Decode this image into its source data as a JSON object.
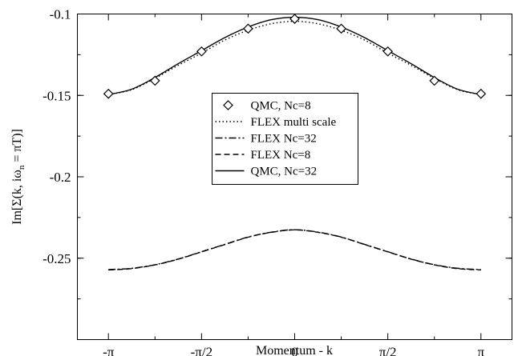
{
  "chart_data": {
    "type": "line",
    "xlabel": "Momentum - k",
    "ylabel_parts": {
      "main": "Im[Σ(k, iω",
      "sub": "n",
      "tail": " = πT)]"
    },
    "xlim": [
      -3.6652,
      3.6652
    ],
    "ylim": [
      -0.3,
      -0.1
    ],
    "x_ticks": [
      {
        "value": -3.14159,
        "label": "-π"
      },
      {
        "value": -1.5708,
        "label": "-π/2"
      },
      {
        "value": 0,
        "label": "0"
      },
      {
        "value": 1.5708,
        "label": "π/2"
      },
      {
        "value": 3.14159,
        "label": "π"
      }
    ],
    "y_ticks": [
      {
        "value": -0.1,
        "label": "-0.1"
      },
      {
        "value": -0.15,
        "label": "-0.15"
      },
      {
        "value": -0.2,
        "label": "-0.2"
      },
      {
        "value": -0.25,
        "label": "-0.25"
      }
    ],
    "series": [
      {
        "name": "QMC, Nc=8",
        "style": "markers",
        "marker": "diamond",
        "x": [
          -3.14159,
          -2.35619,
          -1.5708,
          -0.7854,
          0,
          0.7854,
          1.5708,
          2.35619,
          3.14159
        ],
        "y": [
          -0.149,
          -0.141,
          -0.123,
          -0.109,
          -0.103,
          -0.109,
          -0.123,
          -0.141,
          -0.149
        ]
      },
      {
        "name": "FLEX multi scale",
        "style": "dotted",
        "x": [
          -3.14159,
          -2.74889,
          -2.35619,
          -1.9635,
          -1.5708,
          -1.1781,
          -0.7854,
          -0.3927,
          0,
          0.3927,
          0.7854,
          1.1781,
          1.5708,
          1.9635,
          2.35619,
          2.74889,
          3.14159
        ],
        "y": [
          -0.1495,
          -0.1465,
          -0.1395,
          -0.1315,
          -0.124,
          -0.116,
          -0.11,
          -0.106,
          -0.1045,
          -0.106,
          -0.11,
          -0.116,
          -0.124,
          -0.1315,
          -0.1395,
          -0.1465,
          -0.1495
        ]
      },
      {
        "name": "FLEX Nc=32",
        "style": "dashdot",
        "x": [
          -3.14159,
          -2.74889,
          -2.35619,
          -1.9635,
          -1.5708,
          -1.1781,
          -0.7854,
          -0.3927,
          0,
          0.3927,
          0.7854,
          1.1781,
          1.5708,
          1.9635,
          2.35619,
          2.74889,
          3.14159
        ],
        "y": [
          -0.257,
          -0.2562,
          -0.254,
          -0.2505,
          -0.246,
          -0.2415,
          -0.237,
          -0.234,
          -0.2325,
          -0.234,
          -0.237,
          -0.2415,
          -0.246,
          -0.2505,
          -0.254,
          -0.2562,
          -0.257
        ]
      },
      {
        "name": "FLEX Nc=8",
        "style": "dashed",
        "x": [
          -3.14159,
          -2.74889,
          -2.35619,
          -1.9635,
          -1.5708,
          -1.1781,
          -0.7854,
          -0.3927,
          0,
          0.3927,
          0.7854,
          1.1781,
          1.5708,
          1.9635,
          2.35619,
          2.74889,
          3.14159
        ],
        "y": [
          -0.2572,
          -0.2564,
          -0.2541,
          -0.2506,
          -0.2461,
          -0.2416,
          -0.2371,
          -0.2341,
          -0.2326,
          -0.2341,
          -0.2371,
          -0.2416,
          -0.2461,
          -0.2506,
          -0.2541,
          -0.2564,
          -0.2572
        ]
      },
      {
        "name": "QMC, Nc=32",
        "style": "solid",
        "x": [
          -3.14159,
          -2.74889,
          -2.35619,
          -1.9635,
          -1.5708,
          -1.1781,
          -0.7854,
          -0.3927,
          0,
          0.3927,
          0.7854,
          1.1781,
          1.5708,
          1.9635,
          2.35619,
          2.74889,
          3.14159
        ],
        "y": [
          -0.1495,
          -0.1462,
          -0.139,
          -0.1305,
          -0.1225,
          -0.1145,
          -0.108,
          -0.1035,
          -0.102,
          -0.1035,
          -0.108,
          -0.1145,
          -0.1225,
          -0.1305,
          -0.139,
          -0.1462,
          -0.1495
        ]
      }
    ],
    "legend": [
      "QMC, Nc=8",
      "FLEX multi scale",
      "FLEX Nc=32",
      "FLEX Nc=8",
      "QMC, Nc=32"
    ]
  }
}
